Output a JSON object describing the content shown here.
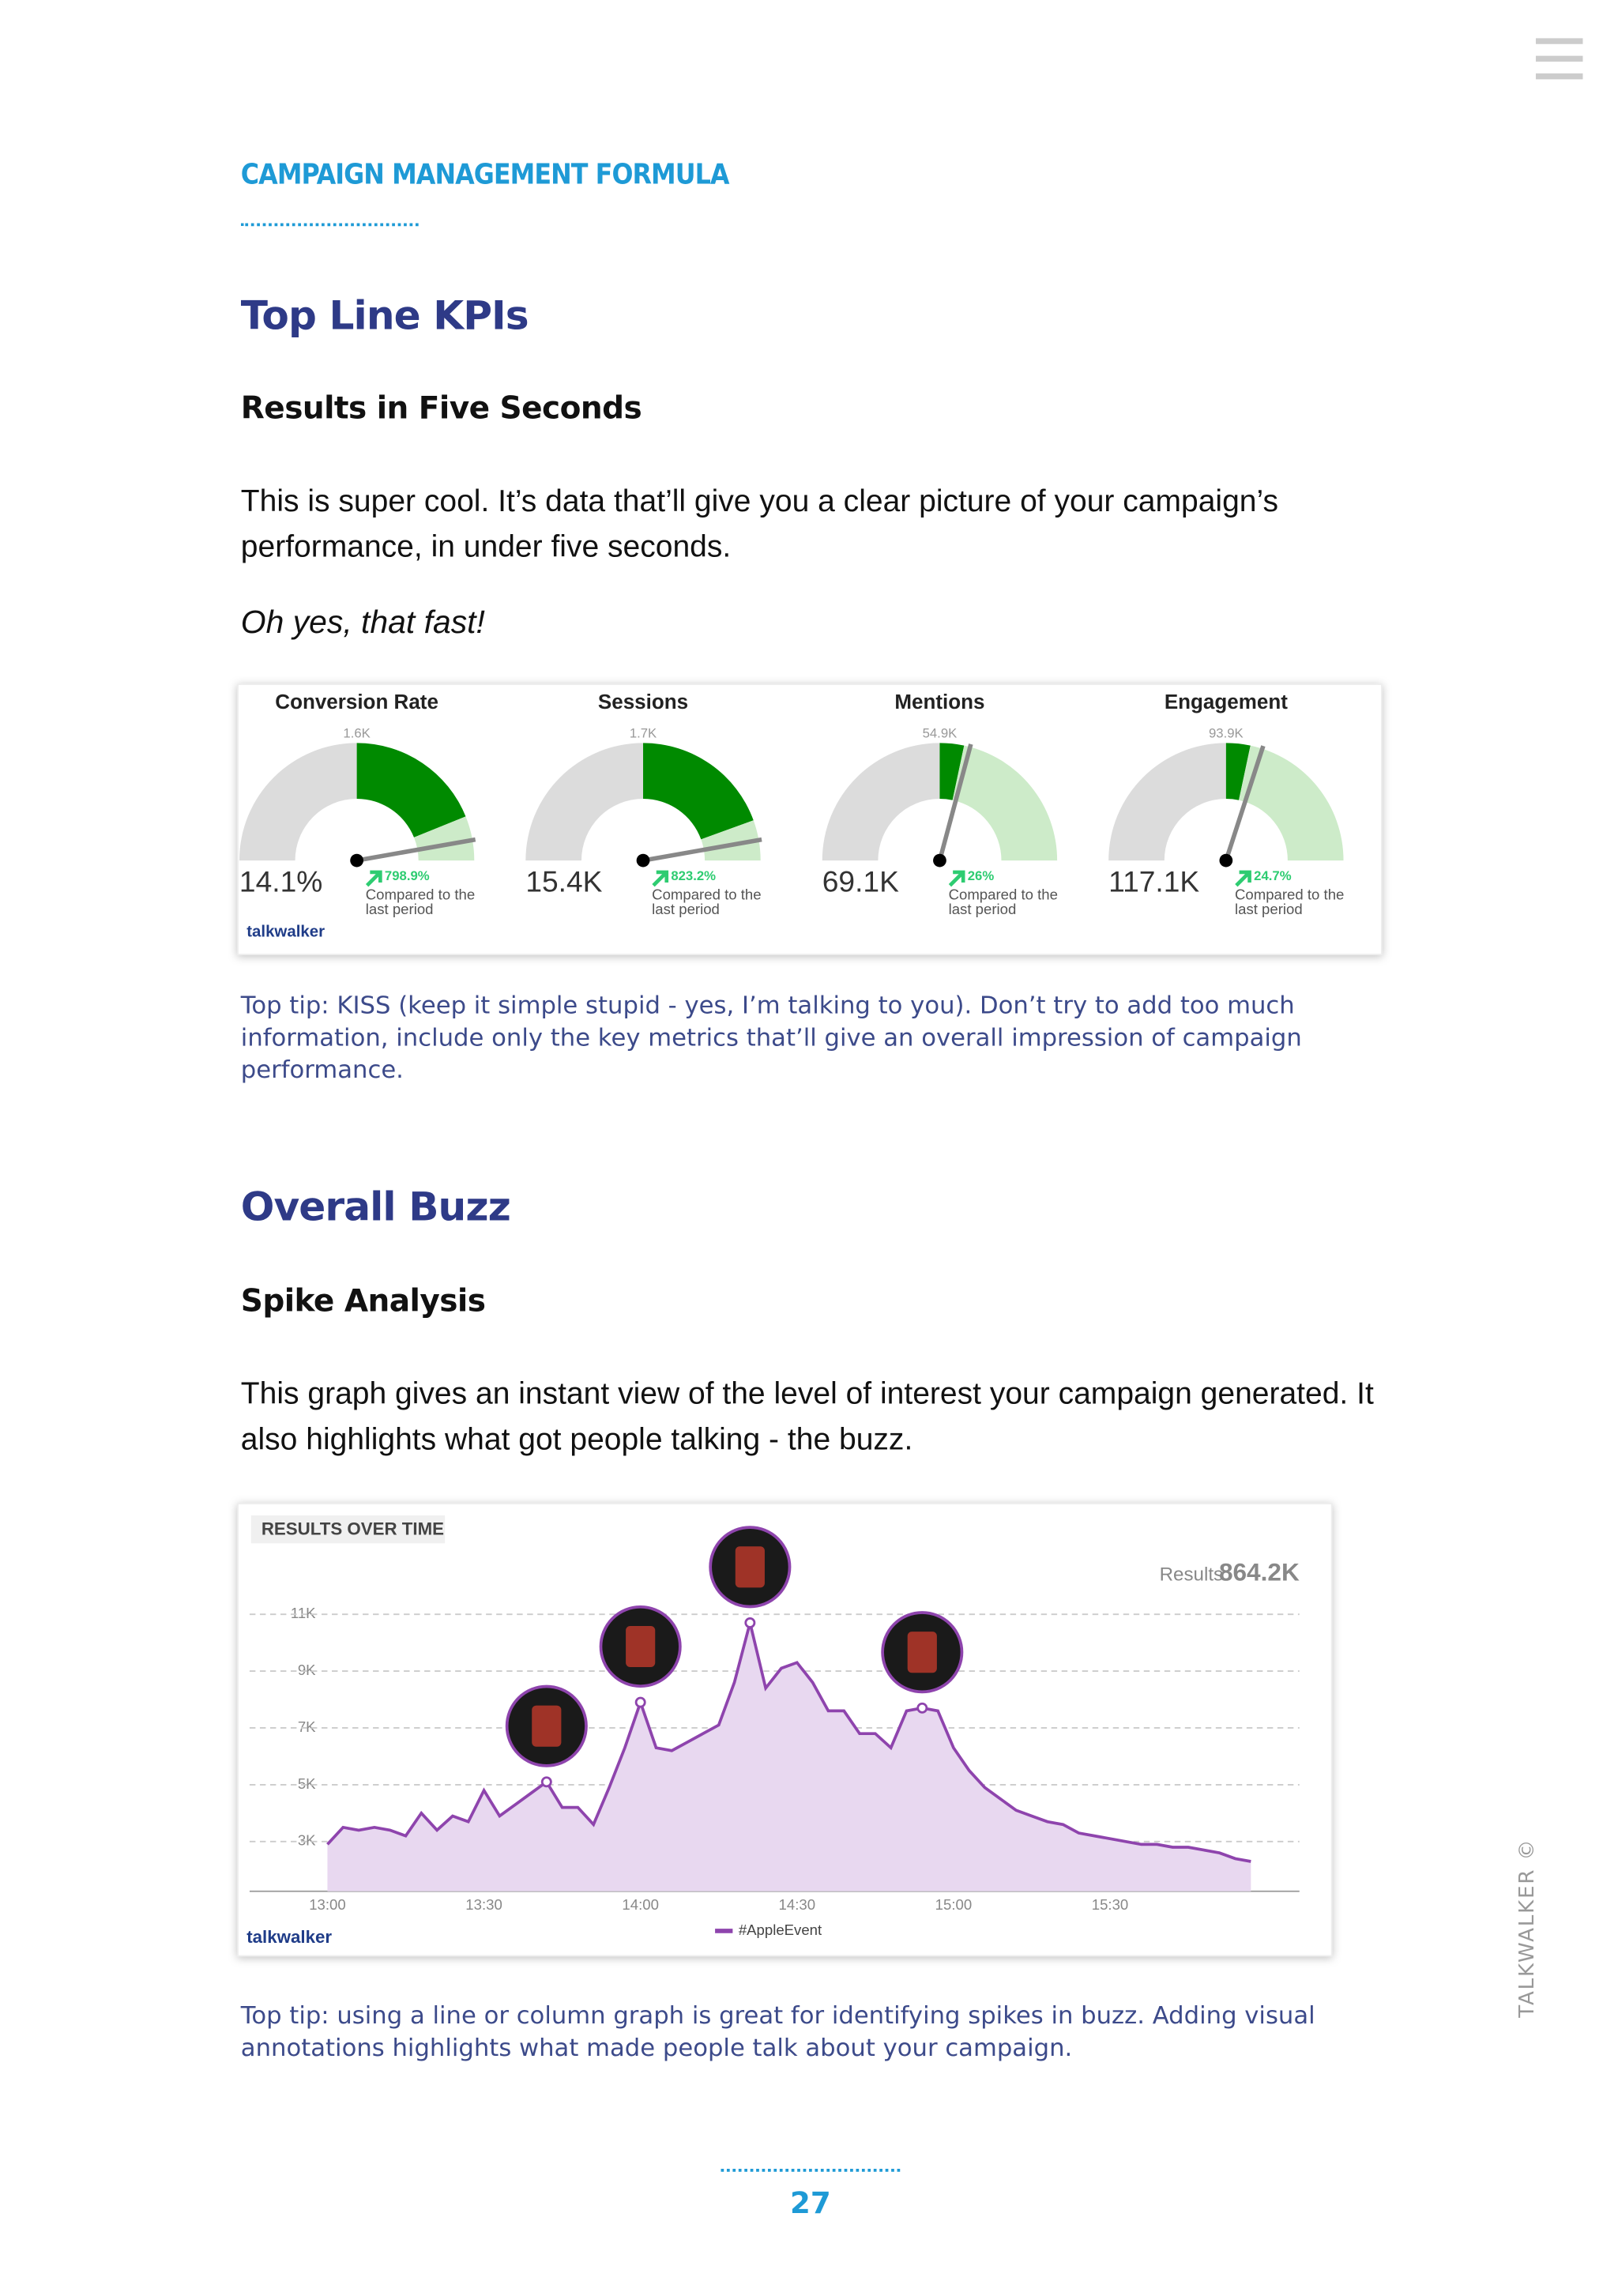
{
  "header": {
    "running_title": "CAMPAIGN MANAGEMENT FORMULA"
  },
  "sections": [
    {
      "heading": "Top Line KPIs",
      "subheading": "Results in Five Seconds",
      "paragraph": "This is super cool. It’s data that’ll give you a clear picture of your campaign’s performance, in under five seconds.",
      "emphasis": "Oh yes, that fast!",
      "tip": "Top tip: KISS (keep it simple stupid - yes, I’m talking to you). Don’t try to add too much information, include only the key metrics that’ll give an overall impression of campaign performance."
    },
    {
      "heading": "Overall Buzz",
      "subheading": "Spike Analysis",
      "paragraph": "This graph gives an instant view of the level of interest your campaign generated. It also highlights what got people talking - the buzz.",
      "tip": "Top tip: using a line or column graph is great for identifying spikes in buzz. Adding visual annotations highlights what made people talk about your campaign."
    }
  ],
  "kpi_widget": {
    "brand": "talkwalker",
    "gauges": [
      {
        "title": "Conversion Rate",
        "max_label": "1.6K",
        "value": "14.1%",
        "change": "798.9%",
        "comparison": [
          "Compared to the",
          "last period"
        ]
      },
      {
        "title": "Sessions",
        "max_label": "1.7K",
        "value": "15.4K",
        "change": "823.2%",
        "comparison": [
          "Compared to the",
          "last period"
        ]
      },
      {
        "title": "Mentions",
        "max_label": "54.9K",
        "value": "69.1K",
        "change": "26%",
        "comparison": [
          "Compared to the",
          "last period"
        ]
      },
      {
        "title": "Engagement",
        "max_label": "93.9K",
        "value": "117.1K",
        "change": "24.7%",
        "comparison": [
          "Compared to the",
          "last period"
        ]
      }
    ]
  },
  "chart_data": {
    "type": "line",
    "title": "RESULTS OVER TIME",
    "total_label": "Results",
    "total": "864.2K",
    "brand": "talkwalker",
    "categories": [
      "13:00",
      null,
      null,
      null,
      null,
      null,
      null,
      null,
      null,
      null,
      "13:30",
      null,
      null,
      null,
      null,
      null,
      null,
      null,
      null,
      null,
      "14:00",
      null,
      null,
      null,
      null,
      null,
      null,
      null,
      null,
      null,
      "14:30",
      null,
      null,
      null,
      null,
      null,
      null,
      null,
      null,
      null,
      "15:00",
      null,
      null,
      null,
      null,
      null,
      null,
      null,
      null,
      null,
      "15:30",
      null,
      null,
      null,
      null,
      null,
      null,
      null,
      null,
      null
    ],
    "series": [
      {
        "name": "#AppleEvent",
        "color": "#8e44ad",
        "fill": "#e8d8f0",
        "values": [
          2900,
          3500,
          3400,
          3500,
          3400,
          3200,
          4000,
          3400,
          3900,
          3700,
          4800,
          3900,
          4300,
          4700,
          5100,
          4200,
          4200,
          3600,
          4900,
          6300,
          7900,
          6300,
          6200,
          6500,
          6800,
          7100,
          8600,
          10700,
          8400,
          9100,
          9300,
          8600,
          7600,
          7600,
          6800,
          6800,
          6300,
          7600,
          7700,
          7600,
          6300,
          5500,
          4900,
          4500,
          4100,
          3900,
          3700,
          3600,
          3300,
          3200,
          3100,
          3000,
          2900,
          2900,
          2800,
          2800,
          2700,
          2600,
          2400,
          2300
        ]
      }
    ],
    "ylim": [
      1250,
      12000
    ],
    "yticks": [
      {
        "value": 3000,
        "label": "3K"
      },
      {
        "value": 5000,
        "label": "5K"
      },
      {
        "value": 7000,
        "label": "7K"
      },
      {
        "value": 9000,
        "label": "9K"
      },
      {
        "value": 11000,
        "label": "11K"
      }
    ],
    "grid": true,
    "legend": "bottom"
  },
  "footer": {
    "page_number": "27",
    "side_label": "TALKWALKER ©"
  }
}
